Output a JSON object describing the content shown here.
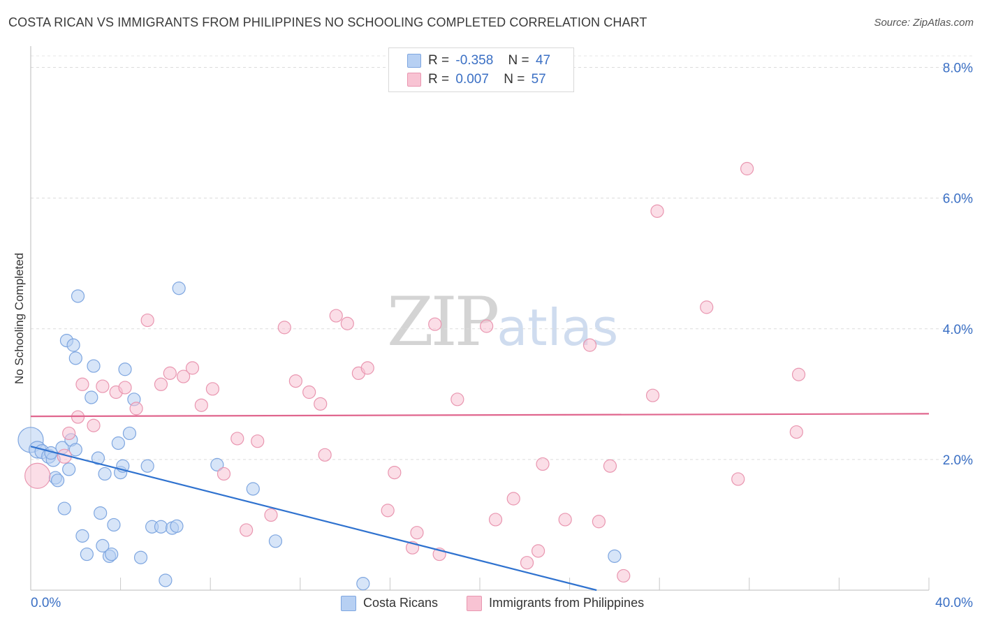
{
  "title": "COSTA RICAN VS IMMIGRANTS FROM PHILIPPINES NO SCHOOLING COMPLETED CORRELATION CHART",
  "source": "Source: ZipAtlas.com",
  "watermark": {
    "zip": "ZIP",
    "atlas": "atlas"
  },
  "colors": {
    "blue_fill": "#b7d0f3",
    "blue_stroke": "#7ea6e0",
    "blue_line": "#2f72cf",
    "pink_fill": "#f8c3d3",
    "pink_stroke": "#e996b0",
    "pink_line": "#e0668e",
    "value_text": "#3a6fc4"
  },
  "legend": {
    "rows": [
      {
        "r_label": "R =",
        "r_value": "-0.358",
        "n_label": "N =",
        "n_value": "47",
        "color": "#b7d0f3"
      },
      {
        "r_label": "R =",
        "r_value": "0.007",
        "n_label": "N =",
        "n_value": "57",
        "color": "#f8c3d3"
      }
    ]
  },
  "bottom_legend": [
    {
      "label": "Costa Ricans",
      "color": "#b7d0f3"
    },
    {
      "label": "Immigrants from Philippines",
      "color": "#f8c3d3"
    }
  ],
  "chart_data": {
    "type": "scatter",
    "title": "COSTA RICAN VS IMMIGRANTS FROM PHILIPPINES NO SCHOOLING COMPLETED CORRELATION CHART",
    "xlabel": "",
    "ylabel": "No Schooling Completed",
    "xlim": [
      0,
      40
    ],
    "ylim": [
      0,
      8.0
    ],
    "x_tick_labels": [
      "0.0%",
      "40.0%"
    ],
    "y_ticks": [
      2,
      4,
      6,
      8
    ],
    "y_tick_labels": [
      "2.0%",
      "4.0%",
      "6.0%",
      "8.0%"
    ],
    "grid": "horizontal dashed",
    "legend_position": "top-center",
    "series": [
      {
        "name": "Costa Ricans",
        "color": "#b7d0f3",
        "trend": {
          "x": [
            0,
            25.2
          ],
          "y": [
            2.2,
            0
          ]
        },
        "points": [
          [
            0,
            2.3,
            18
          ],
          [
            0.3,
            2.15,
            12
          ],
          [
            0.5,
            2.12,
            10
          ],
          [
            0.8,
            2.05,
            10
          ],
          [
            1.0,
            2.0,
            10
          ],
          [
            1.1,
            1.72,
            9
          ],
          [
            1.2,
            1.68,
            9
          ],
          [
            1.4,
            2.18,
            9
          ],
          [
            1.5,
            1.25,
            9
          ],
          [
            1.6,
            3.82,
            9
          ],
          [
            1.7,
            1.85,
            9
          ],
          [
            1.8,
            2.3,
            9
          ],
          [
            1.9,
            3.75,
            9
          ],
          [
            2.0,
            3.55,
            9
          ],
          [
            2.1,
            4.5,
            9
          ],
          [
            2.3,
            0.83,
            9
          ],
          [
            2.5,
            0.55,
            9
          ],
          [
            2.7,
            2.95,
            9
          ],
          [
            2.8,
            3.43,
            9
          ],
          [
            3.0,
            2.02,
            9
          ],
          [
            3.1,
            1.18,
            9
          ],
          [
            3.2,
            0.68,
            9
          ],
          [
            3.3,
            1.78,
            9
          ],
          [
            3.5,
            0.52,
            9
          ],
          [
            3.6,
            0.55,
            9
          ],
          [
            3.7,
            1.0,
            9
          ],
          [
            3.9,
            2.25,
            9
          ],
          [
            4.0,
            1.8,
            9
          ],
          [
            4.1,
            1.9,
            9
          ],
          [
            4.2,
            3.38,
            9
          ],
          [
            4.4,
            2.4,
            9
          ],
          [
            4.6,
            2.92,
            9
          ],
          [
            4.9,
            0.5,
            9
          ],
          [
            5.2,
            1.9,
            9
          ],
          [
            5.4,
            0.97,
            9
          ],
          [
            5.8,
            0.97,
            9
          ],
          [
            6.0,
            0.15,
            9
          ],
          [
            6.3,
            0.95,
            9
          ],
          [
            6.5,
            0.98,
            9
          ],
          [
            6.6,
            4.62,
            9
          ],
          [
            8.3,
            1.92,
            9
          ],
          [
            9.9,
            1.55,
            9
          ],
          [
            10.9,
            0.75,
            9
          ],
          [
            14.8,
            0.1,
            9
          ],
          [
            26.0,
            0.52,
            9
          ],
          [
            2.0,
            2.15,
            9
          ],
          [
            0.9,
            2.1,
            9
          ]
        ]
      },
      {
        "name": "Immigrants from Philippines",
        "color": "#f8c3d3",
        "trend": {
          "x": [
            0,
            40
          ],
          "y": [
            2.66,
            2.7
          ]
        },
        "points": [
          [
            0.3,
            1.75,
            18
          ],
          [
            1.5,
            2.05,
            10
          ],
          [
            1.7,
            2.4,
            9
          ],
          [
            2.1,
            2.65,
            9
          ],
          [
            2.3,
            3.15,
            9
          ],
          [
            2.8,
            2.52,
            9
          ],
          [
            3.2,
            3.12,
            9
          ],
          [
            3.8,
            3.03,
            9
          ],
          [
            4.2,
            3.1,
            9
          ],
          [
            4.7,
            2.78,
            9
          ],
          [
            5.2,
            4.13,
            9
          ],
          [
            5.8,
            3.15,
            9
          ],
          [
            6.2,
            3.32,
            9
          ],
          [
            6.8,
            3.27,
            9
          ],
          [
            7.2,
            3.4,
            9
          ],
          [
            7.6,
            2.83,
            9
          ],
          [
            8.1,
            3.08,
            9
          ],
          [
            8.6,
            1.78,
            9
          ],
          [
            9.2,
            2.32,
            9
          ],
          [
            9.6,
            0.92,
            9
          ],
          [
            10.1,
            2.28,
            9
          ],
          [
            10.7,
            1.15,
            9
          ],
          [
            11.3,
            4.02,
            9
          ],
          [
            11.8,
            3.2,
            9
          ],
          [
            12.4,
            3.03,
            9
          ],
          [
            12.9,
            2.85,
            9
          ],
          [
            13.1,
            2.07,
            9
          ],
          [
            13.6,
            4.2,
            9
          ],
          [
            14.1,
            4.08,
            9
          ],
          [
            14.6,
            3.32,
            9
          ],
          [
            15.0,
            3.4,
            9
          ],
          [
            15.9,
            1.22,
            9
          ],
          [
            16.2,
            1.8,
            9
          ],
          [
            17.0,
            0.65,
            9
          ],
          [
            17.2,
            0.88,
            9
          ],
          [
            18.0,
            4.07,
            9
          ],
          [
            18.2,
            0.55,
            9
          ],
          [
            19.0,
            2.92,
            9
          ],
          [
            20.3,
            4.04,
            9
          ],
          [
            20.7,
            1.08,
            9
          ],
          [
            21.5,
            1.4,
            9
          ],
          [
            22.1,
            0.42,
            9
          ],
          [
            22.6,
            0.6,
            9
          ],
          [
            22.8,
            1.93,
            9
          ],
          [
            23.8,
            1.08,
            9
          ],
          [
            24.9,
            3.75,
            9
          ],
          [
            25.3,
            1.05,
            9
          ],
          [
            25.8,
            1.9,
            9
          ],
          [
            26.4,
            0.22,
            9
          ],
          [
            27.7,
            2.98,
            9
          ],
          [
            27.9,
            5.8,
            9
          ],
          [
            30.1,
            4.33,
            9
          ],
          [
            31.5,
            1.7,
            9
          ],
          [
            31.9,
            6.45,
            9
          ],
          [
            34.1,
            2.42,
            9
          ],
          [
            34.2,
            3.3,
            9
          ],
          [
            19.2,
            7.98,
            9
          ]
        ]
      }
    ]
  }
}
